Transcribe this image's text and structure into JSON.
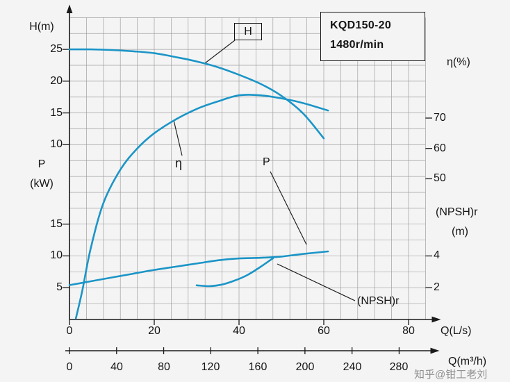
{
  "title_box": {
    "line1": "KQD150-20",
    "line2": "1480r/min"
  },
  "axes": {
    "h": {
      "title": "H(m)",
      "ticks": [
        "25",
        "20",
        "15",
        "10"
      ]
    },
    "p": {
      "title_1": "P",
      "title_2": "(kW)",
      "ticks": [
        "15",
        "10",
        "5"
      ]
    },
    "eta": {
      "title": "η(%)",
      "ticks": [
        "70",
        "60",
        "50"
      ]
    },
    "npsh": {
      "title_1": "(NPSH)r",
      "title_2": "(m)",
      "ticks": [
        "4",
        "2"
      ]
    },
    "q_ls": {
      "title": "Q(L/s)",
      "ticks": [
        "0",
        "20",
        "40",
        "60",
        "80"
      ]
    },
    "q_m3h": {
      "title": "Q(m³/h)",
      "ticks": [
        "0",
        "40",
        "80",
        "120",
        "160",
        "200",
        "240",
        "280"
      ]
    }
  },
  "curve_labels": {
    "h": "H",
    "eta": "η",
    "p": "P",
    "npsh": "(NPSH)r"
  },
  "watermark": "知乎@钳工老刘",
  "chart_data": {
    "type": "line",
    "title": "KQD150-20 centrifugal pump performance curves, 1480 r/min",
    "x": {
      "label": "Q(L/s)",
      "ticks": [
        0,
        20,
        40,
        60,
        80
      ],
      "range": [
        0,
        84
      ]
    },
    "x_secondary": {
      "label": "Q(m³/h)",
      "ticks": [
        0,
        40,
        80,
        120,
        160,
        200,
        240,
        280
      ],
      "conversion": "1 L/s = 3.6 m³/h"
    },
    "y_axes": [
      {
        "id": "H",
        "label": "H(m)",
        "side": "left",
        "ticks": [
          25,
          20,
          15,
          10
        ]
      },
      {
        "id": "P",
        "label": "P (kW)",
        "side": "left",
        "ticks": [
          15,
          10,
          5
        ]
      },
      {
        "id": "eta",
        "label": "η(%)",
        "side": "right",
        "ticks": [
          70,
          60,
          50
        ]
      },
      {
        "id": "NPSH",
        "label": "(NPSH)r (m)",
        "side": "right",
        "ticks": [
          4,
          2
        ]
      }
    ],
    "grid": true,
    "curve_color": "#1b95c7",
    "series": [
      {
        "name": "H",
        "axis": "H",
        "unit": "m",
        "points": [
          [
            0,
            25
          ],
          [
            5,
            25
          ],
          [
            10,
            24.9
          ],
          [
            15,
            24.7
          ],
          [
            20,
            24.4
          ],
          [
            25,
            23.8
          ],
          [
            30,
            23.1
          ],
          [
            35,
            22.2
          ],
          [
            40,
            21.0
          ],
          [
            45,
            19.6
          ],
          [
            50,
            17.7
          ],
          [
            55,
            15.0
          ],
          [
            60,
            11.0
          ]
        ]
      },
      {
        "name": "η",
        "axis": "eta",
        "unit": "%",
        "points": [
          [
            1.5,
            4
          ],
          [
            3,
            13
          ],
          [
            5,
            27
          ],
          [
            8,
            42
          ],
          [
            12,
            53
          ],
          [
            16,
            60
          ],
          [
            20,
            65
          ],
          [
            25,
            69.5
          ],
          [
            30,
            73
          ],
          [
            35,
            75.5
          ],
          [
            40,
            77.5
          ],
          [
            45,
            77.5
          ],
          [
            50,
            76.5
          ],
          [
            55,
            75
          ],
          [
            61,
            72.5
          ]
        ]
      },
      {
        "name": "P",
        "axis": "P",
        "unit": "kW",
        "points": [
          [
            0,
            5.4
          ],
          [
            5,
            6.0
          ],
          [
            10,
            6.6
          ],
          [
            15,
            7.2
          ],
          [
            20,
            7.8
          ],
          [
            25,
            8.3
          ],
          [
            30,
            8.8
          ],
          [
            35,
            9.3
          ],
          [
            40,
            9.6
          ],
          [
            45,
            9.7
          ],
          [
            50,
            9.9
          ],
          [
            55,
            10.3
          ],
          [
            61,
            10.7
          ]
        ]
      },
      {
        "name": "(NPSH)r",
        "axis": "NPSH",
        "unit": "m",
        "points": [
          [
            30,
            2.15
          ],
          [
            33,
            2.1
          ],
          [
            36,
            2.2
          ],
          [
            39,
            2.45
          ],
          [
            42,
            2.8
          ],
          [
            45,
            3.3
          ],
          [
            48,
            3.85
          ]
        ]
      }
    ]
  }
}
